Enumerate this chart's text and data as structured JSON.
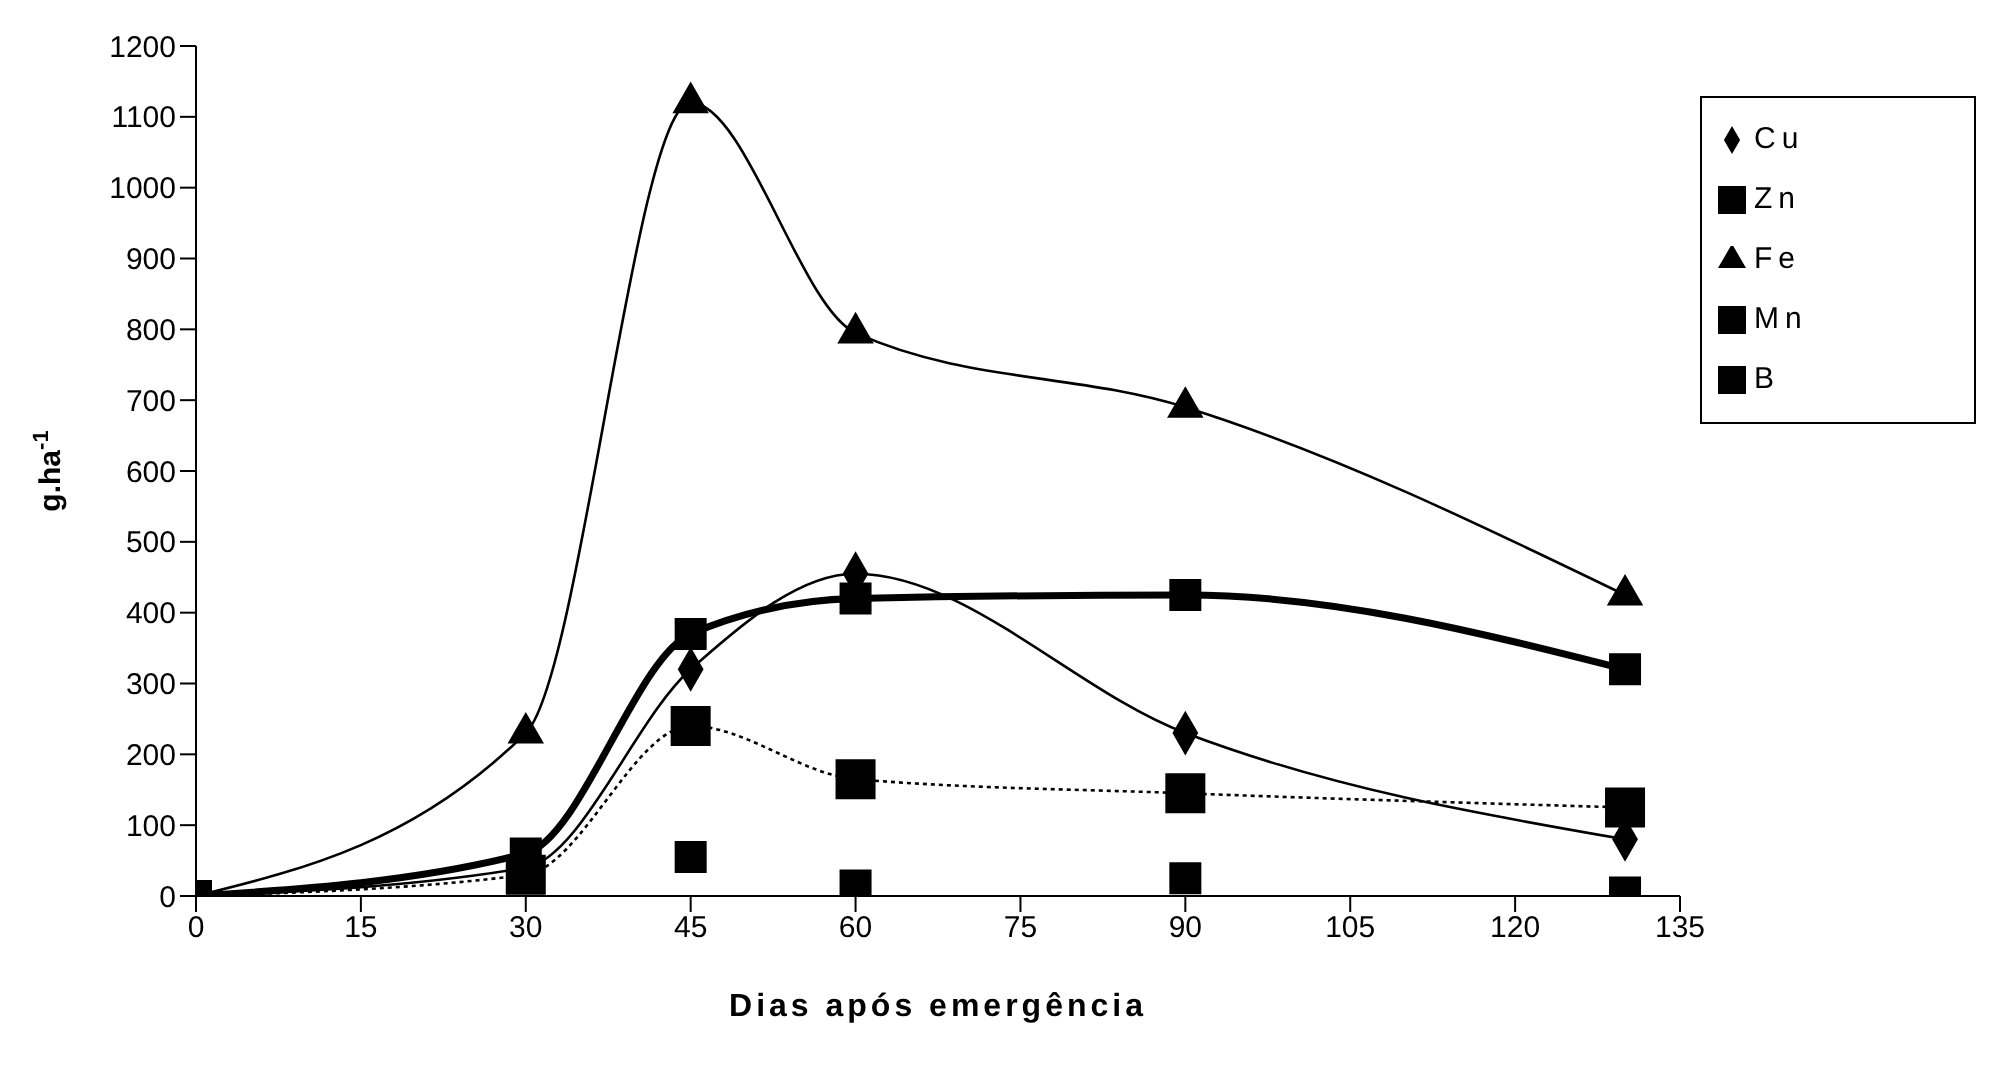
{
  "chart_data": {
    "type": "line",
    "xlabel": "Dias após emergência",
    "ylabel": "g.ha$^{-1}$",
    "x": [
      0,
      30,
      45,
      60,
      90,
      130
    ],
    "xlim": [
      0,
      135
    ],
    "xticks": [
      0,
      15,
      30,
      45,
      60,
      75,
      90,
      105,
      120,
      135
    ],
    "ylim": [
      0,
      1200
    ],
    "yticks": [
      0,
      100,
      200,
      300,
      400,
      500,
      600,
      700,
      800,
      900,
      1000,
      1100,
      1200
    ],
    "legend": "top right",
    "series": [
      {
        "name": "Cu",
        "color": "#000000",
        "marker": "diamond",
        "line_style": "solid",
        "values": [
          0,
          40,
          320,
          455,
          230,
          80
        ]
      },
      {
        "name": "Zn",
        "color": "#000000",
        "marker": "square",
        "line_style": "dotted",
        "values": [
          0,
          30,
          240,
          165,
          145,
          125
        ]
      },
      {
        "name": "Fe",
        "color": "#000000",
        "marker": "triangle",
        "line_style": "solid",
        "values": [
          0,
          230,
          1120,
          795,
          690,
          425
        ]
      },
      {
        "name": "Mn",
        "color": "#000000",
        "marker": "square",
        "line_style": "solid",
        "values": [
          0,
          60,
          370,
          420,
          425,
          320
        ]
      },
      {
        "name": "B",
        "type": "scatter",
        "color": "#000000",
        "marker": "square",
        "values": [
          0,
          null,
          55,
          15,
          25,
          5
        ]
      }
    ]
  }
}
